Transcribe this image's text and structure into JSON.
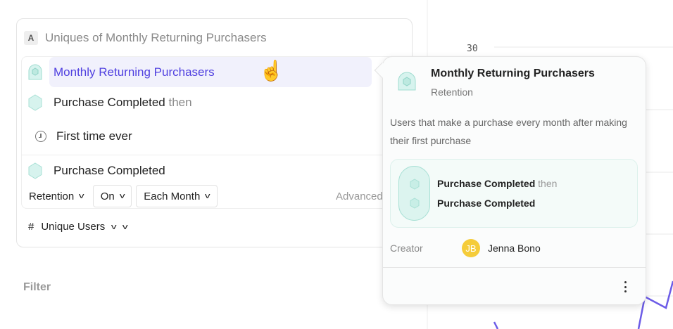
{
  "chart_bg": {
    "tick_30": "30",
    "line_color": "#6c5ce7"
  },
  "card": {
    "badge": "A",
    "title": "Uniques of Monthly Returning Purchasers",
    "metric": {
      "label": "Monthly Returning Purchasers",
      "color": "#5040e0"
    },
    "step1": {
      "event": "Purchase Completed",
      "suffix": "then"
    },
    "step1_filter": "First time ever",
    "step2": {
      "event": "Purchase Completed"
    },
    "controls": {
      "retention": "Retention",
      "on": "On",
      "frequency": "Each Month",
      "advanced": "Advanced"
    },
    "measure": {
      "hash": "#",
      "label": "Unique Users"
    }
  },
  "filter_label": "Filter",
  "popover": {
    "title": "Monthly Returning Purchasers",
    "type": "Retention",
    "description": "Users that make a purchase every month after making their first purchase",
    "steps": [
      {
        "event": "Purchase Completed",
        "suffix": "then"
      },
      {
        "event": "Purchase Completed"
      }
    ],
    "creator_label": "Creator",
    "creator_initials": "JB",
    "creator_name": "Jenna Bono",
    "avatar_color": "#f5cc3a"
  }
}
